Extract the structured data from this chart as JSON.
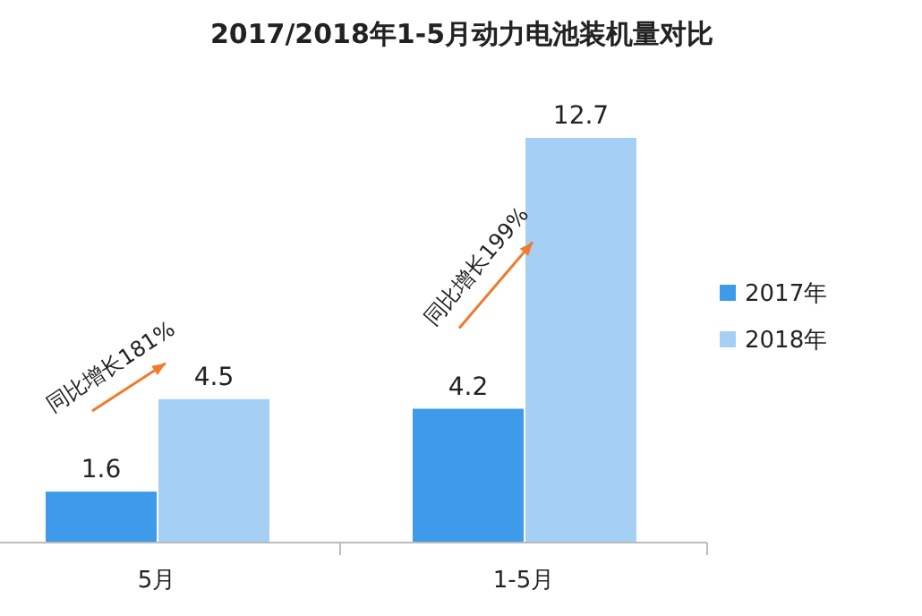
{
  "chart_data": {
    "type": "bar",
    "title": "2017/2018年1-5月动力电池装机量对比",
    "categories": [
      "5月",
      "1-5月"
    ],
    "series": [
      {
        "name": "2017年",
        "color": "#3d9be9",
        "values": [
          1.6,
          4.2
        ]
      },
      {
        "name": "2018年",
        "color": "#a6cff5",
        "values": [
          4.5,
          12.7
        ]
      }
    ],
    "data_labels": true,
    "legend": "right",
    "annotations": [
      {
        "text": "同比增长181%",
        "x": "5月"
      },
      {
        "text": "同比增长199%",
        "x": "1-5月"
      }
    ]
  }
}
